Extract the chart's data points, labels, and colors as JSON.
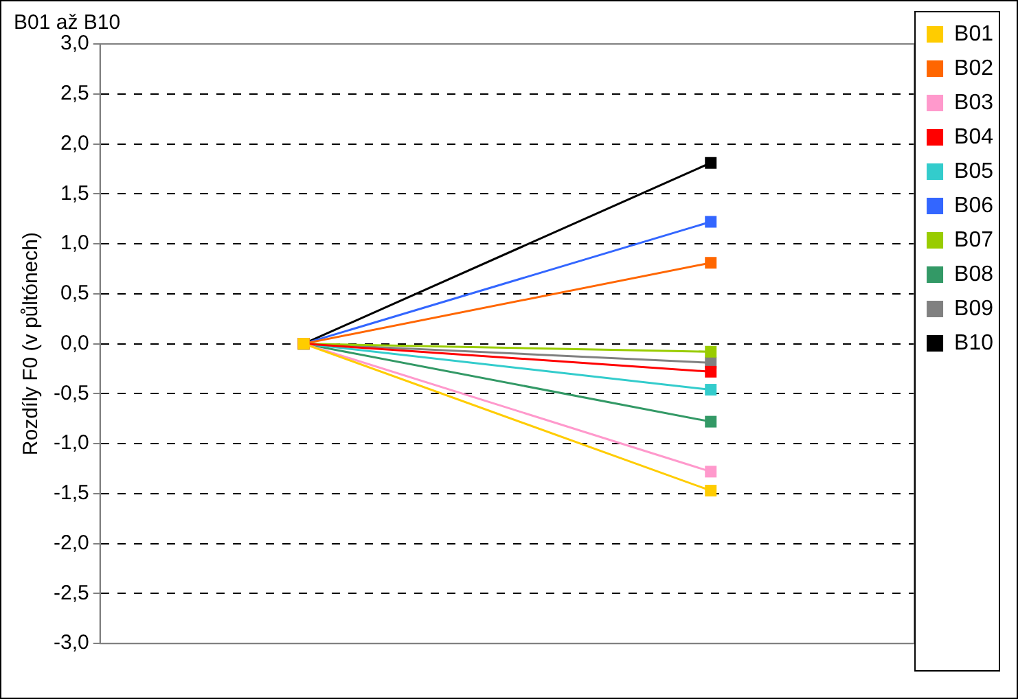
{
  "chart_data": {
    "type": "line",
    "title": "B01 až B10",
    "ylabel": "Rozdíly F0 (v půltónech)",
    "categories": [
      null,
      null
    ],
    "series": [
      {
        "name": "B01",
        "color": "#ffcc00",
        "values": [
          0,
          -1.47
        ]
      },
      {
        "name": "B02",
        "color": "#ff6600",
        "values": [
          0,
          0.81
        ]
      },
      {
        "name": "B03",
        "color": "#ff99cc",
        "values": [
          0,
          -1.28
        ]
      },
      {
        "name": "B04",
        "color": "#ff0000",
        "values": [
          0,
          -0.28
        ]
      },
      {
        "name": "B05",
        "color": "#33cccc",
        "values": [
          0,
          -0.46
        ]
      },
      {
        "name": "B06",
        "color": "#3366ff",
        "values": [
          0,
          1.22
        ]
      },
      {
        "name": "B07",
        "color": "#99cc00",
        "values": [
          0,
          -0.08
        ]
      },
      {
        "name": "B08",
        "color": "#339966",
        "values": [
          0,
          -0.78
        ]
      },
      {
        "name": "B09",
        "color": "#808080",
        "values": [
          0,
          -0.19
        ]
      },
      {
        "name": "B10",
        "color": "#000000",
        "values": [
          0,
          1.81
        ]
      }
    ],
    "ylim": [
      -3,
      3
    ],
    "yticks": [
      {
        "value": -3,
        "label": "-3,0"
      },
      {
        "value": -2.5,
        "label": "-2,5"
      },
      {
        "value": -2,
        "label": "-2,0"
      },
      {
        "value": -1.5,
        "label": "-1,5"
      },
      {
        "value": -1,
        "label": "-1,0"
      },
      {
        "value": -0.5,
        "label": "-0,5"
      },
      {
        "value": 0,
        "label": "0,0"
      },
      {
        "value": 0.5,
        "label": "0,5"
      },
      {
        "value": 1,
        "label": "1,0"
      },
      {
        "value": 1.5,
        "label": "1,5"
      },
      {
        "value": 2,
        "label": "2,0"
      },
      {
        "value": 2.5,
        "label": "2,5"
      },
      {
        "value": 3,
        "label": "3,0"
      }
    ],
    "grid": "y",
    "legend": "right",
    "marker": "square",
    "line_style": "solid"
  }
}
